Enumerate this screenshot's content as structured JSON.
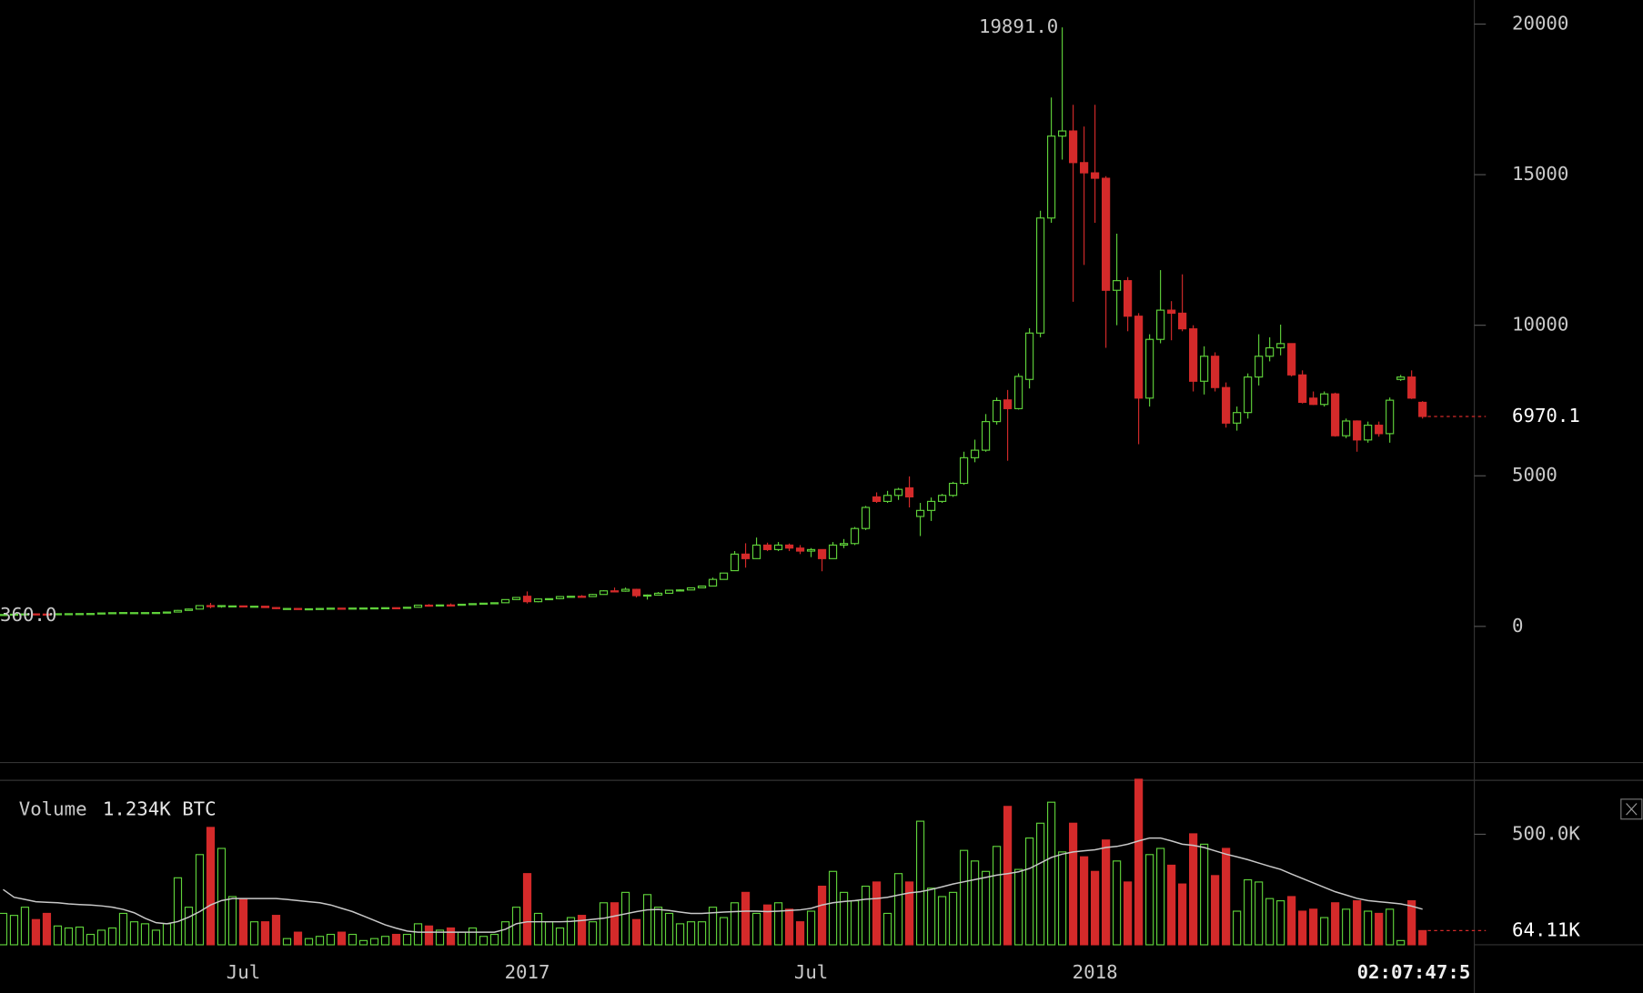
{
  "chart_data": [
    {
      "type": "candlestick",
      "categories": [
        null,
        null,
        null,
        null,
        null,
        null,
        null,
        null,
        null,
        null,
        null,
        null,
        null,
        null,
        null,
        null,
        null,
        null,
        null,
        null,
        null,
        null,
        null,
        null,
        null,
        null,
        null,
        null,
        null,
        null,
        null,
        null,
        null,
        null,
        null,
        null,
        null,
        null,
        null,
        null,
        null,
        null,
        null,
        null,
        null,
        null,
        null,
        null,
        null,
        null,
        null,
        null,
        null,
        null,
        null,
        null,
        null,
        null,
        null,
        null,
        null,
        null,
        null,
        null,
        null,
        null,
        null,
        null,
        null,
        null,
        null,
        null,
        null,
        null,
        null,
        null,
        null,
        null,
        null,
        null,
        null,
        null,
        null,
        null,
        null,
        null,
        null,
        null,
        null,
        null,
        null,
        null,
        null,
        null,
        null,
        null,
        null,
        null,
        null,
        null,
        null,
        null,
        null,
        null,
        null,
        null,
        null,
        null,
        null,
        null,
        null,
        null,
        null,
        null,
        null,
        null,
        null,
        null,
        null,
        null,
        null,
        null,
        null,
        null,
        null,
        null,
        null,
        null,
        null,
        null,
        null
      ],
      "open": [
        370,
        395,
        405,
        415,
        410,
        405,
        420,
        422,
        425,
        428,
        445,
        452,
        452,
        454,
        458,
        461,
        476,
        530,
        575,
        690,
        670,
        665,
        680,
        655,
        670,
        625,
        590,
        595,
        580,
        585,
        595,
        605,
        600,
        608,
        610,
        615,
        620,
        610,
        635,
        705,
        700,
        712,
        705,
        735,
        755,
        770,
        785,
        890,
        1000,
        820,
        910,
        920,
        990,
        1000,
        990,
        1060,
        1180,
        1170,
        1230,
        1020,
        1040,
        1100,
        1190,
        1210,
        1280,
        1340,
        1560,
        1850,
        2400,
        2250,
        2700,
        2550,
        2700,
        2600,
        2500,
        2550,
        2250,
        2700,
        2750,
        3250,
        4300,
        4150,
        4350,
        4600,
        3650,
        3850,
        4150,
        4350,
        4750,
        5600,
        5850,
        6800,
        7520,
        7230,
        8200,
        9740,
        13560,
        16280,
        16450,
        15400,
        15060,
        14880,
        11160,
        11480,
        10300,
        7580,
        9530,
        10500,
        10400,
        9880,
        8140,
        8970,
        7930,
        6750,
        7100,
        8280,
        8970,
        9250,
        9390,
        8350,
        7580,
        7370,
        7720,
        6330,
        6820,
        6190,
        6680,
        6400,
        8200,
        8280,
        7440
      ],
      "high": [
        400,
        410,
        440,
        420,
        418,
        425,
        428,
        430,
        430,
        452,
        462,
        468,
        460,
        462,
        462,
        480,
        545,
        590,
        700,
        780,
        705,
        690,
        690,
        675,
        675,
        640,
        600,
        600,
        590,
        600,
        615,
        610,
        612,
        612,
        618,
        625,
        625,
        640,
        720,
        740,
        715,
        760,
        745,
        760,
        775,
        790,
        900,
        975,
        1160,
        920,
        930,
        1000,
        1010,
        1040,
        1080,
        1200,
        1290,
        1290,
        1250,
        1060,
        1140,
        1210,
        1230,
        1290,
        1350,
        1620,
        1780,
        2500,
        2760,
        2950,
        2780,
        2800,
        2750,
        2700,
        2600,
        2560,
        2800,
        2900,
        3300,
        4000,
        4450,
        4500,
        4600,
        4980,
        4100,
        4280,
        4400,
        4800,
        5800,
        6200,
        7050,
        7600,
        7850,
        8400,
        9900,
        13800,
        17560,
        19891,
        17320,
        16600,
        17320,
        14950,
        13040,
        11600,
        10400,
        9700,
        11830,
        10800,
        11690,
        10000,
        9300,
        9100,
        8100,
        7300,
        8400,
        9700,
        9600,
        10020,
        9400,
        8500,
        7800,
        7800,
        7760,
        6900,
        6840,
        6800,
        6800,
        7600,
        8350,
        8500,
        7480
      ],
      "low": [
        365,
        385,
        400,
        395,
        400,
        400,
        412,
        415,
        418,
        425,
        440,
        442,
        445,
        440,
        448,
        455,
        470,
        525,
        570,
        600,
        620,
        640,
        650,
        645,
        620,
        575,
        570,
        570,
        565,
        575,
        590,
        590,
        595,
        600,
        605,
        608,
        605,
        608,
        630,
        690,
        695,
        690,
        700,
        730,
        750,
        765,
        780,
        880,
        760,
        800,
        880,
        900,
        970,
        980,
        985,
        1050,
        1130,
        1150,
        960,
        890,
        1030,
        1090,
        1160,
        1200,
        1270,
        1330,
        1550,
        1840,
        1950,
        2240,
        2500,
        2500,
        2500,
        2400,
        2300,
        1830,
        2240,
        2600,
        2700,
        3200,
        4100,
        4100,
        4200,
        3950,
        3000,
        3500,
        4100,
        4300,
        4700,
        5450,
        5800,
        6700,
        5500,
        7200,
        7900,
        9600,
        13400,
        15500,
        10780,
        12000,
        13400,
        9250,
        10000,
        9800,
        6050,
        7300,
        9400,
        9500,
        9800,
        7800,
        7700,
        7800,
        6600,
        6500,
        6900,
        8000,
        8800,
        9000,
        8300,
        7400,
        7350,
        7300,
        6300,
        6250,
        5800,
        6100,
        6300,
        6100,
        8150,
        7550,
        6900
      ],
      "close": [
        395,
        405,
        415,
        410,
        405,
        420,
        422,
        425,
        428,
        445,
        455,
        460,
        457,
        458,
        461,
        476,
        530,
        575,
        690,
        670,
        690,
        680,
        655,
        670,
        625,
        590,
        595,
        580,
        585,
        595,
        605,
        600,
        608,
        610,
        615,
        620,
        610,
        635,
        705,
        700,
        712,
        705,
        735,
        755,
        770,
        785,
        890,
        960,
        820,
        910,
        920,
        990,
        1000,
        990,
        1060,
        1180,
        1170,
        1230,
        1020,
        1040,
        1100,
        1200,
        1210,
        1280,
        1340,
        1560,
        1770,
        2400,
        2250,
        2700,
        2550,
        2700,
        2600,
        2500,
        2550,
        2250,
        2700,
        2750,
        3250,
        3950,
        4150,
        4350,
        4550,
        4300,
        3850,
        4150,
        4350,
        4750,
        5600,
        5850,
        6800,
        7500,
        7230,
        8300,
        9740,
        13560,
        16280,
        16450,
        15400,
        15060,
        14880,
        11160,
        11480,
        10300,
        7580,
        9530,
        10500,
        10400,
        9880,
        8140,
        8970,
        7930,
        6750,
        7100,
        8280,
        8970,
        9250,
        9390,
        8350,
        7440,
        7370,
        7720,
        6330,
        6820,
        6190,
        6680,
        6400,
        7510,
        8280,
        7580,
        6970.1
      ],
      "up_color": "#5fd13a",
      "down_color": "#d42a2a",
      "hollow_up": true,
      "ylim": [
        -4521,
        20798
      ],
      "yticks": [
        0,
        5000,
        10000,
        15000,
        20000
      ],
      "high_label": {
        "value": 19891,
        "label": "19891.0"
      },
      "low_label": {
        "value": 360,
        "label": "360.0"
      },
      "last_label": {
        "value": 6970.1,
        "label": "6970.1"
      }
    },
    {
      "type": "bar",
      "title": "Volume",
      "legend_value": "1.234K BTC",
      "categories": [
        null,
        null,
        null,
        null,
        null,
        null,
        null,
        null,
        null,
        null,
        null,
        null,
        null,
        null,
        null,
        null,
        null,
        null,
        null,
        null,
        null,
        null,
        null,
        null,
        null,
        null,
        null,
        null,
        null,
        null,
        null,
        null,
        null,
        null,
        null,
        null,
        null,
        null,
        null,
        null,
        null,
        null,
        null,
        null,
        null,
        null,
        null,
        null,
        null,
        null,
        null,
        null,
        null,
        null,
        null,
        null,
        null,
        null,
        null,
        null,
        null,
        null,
        null,
        null,
        null,
        null,
        null,
        null,
        null,
        null,
        null,
        null,
        null,
        null,
        null,
        null,
        null,
        null,
        null,
        null,
        null,
        null,
        null,
        null,
        null,
        null,
        null,
        null,
        null,
        null,
        null,
        null,
        null,
        null,
        null,
        null,
        null,
        null,
        null,
        null,
        null,
        null,
        null,
        null,
        null,
        null,
        null,
        null,
        null,
        null,
        null,
        null,
        null,
        null,
        null,
        null,
        null,
        null,
        null,
        null,
        null,
        null,
        null,
        null,
        null,
        null,
        null,
        null,
        null,
        null,
        null
      ],
      "values": [
        142,
        133,
        170,
        114,
        142,
        85,
        76,
        80,
        47,
        66,
        76,
        142,
        104,
        95,
        66,
        95,
        303,
        170,
        408,
        531,
        436,
        218,
        209,
        104,
        104,
        133,
        28,
        57,
        28,
        38,
        47,
        57,
        47,
        19,
        28,
        38,
        47,
        47,
        95,
        85,
        66,
        76,
        57,
        76,
        38,
        47,
        104,
        170,
        322,
        142,
        104,
        76,
        123,
        133,
        104,
        190,
        190,
        237,
        114,
        227,
        170,
        142,
        95,
        104,
        104,
        170,
        123,
        190,
        237,
        142,
        180,
        190,
        161,
        104,
        152,
        265,
        332,
        237,
        199,
        265,
        284,
        142,
        322,
        284,
        559,
        256,
        218,
        237,
        427,
        379,
        332,
        445,
        626,
        341,
        483,
        550,
        645,
        420,
        550,
        398,
        332,
        474,
        379,
        284,
        749,
        408,
        436,
        360,
        275,
        502,
        455,
        313,
        436,
        152,
        294,
        284,
        209,
        199,
        218,
        152,
        161,
        123,
        190,
        161,
        199,
        152,
        142,
        161,
        19,
        199,
        64.11
      ],
      "ma_values": [
        250,
        215,
        205,
        195,
        192,
        190,
        185,
        182,
        180,
        176,
        170,
        160,
        145,
        120,
        100,
        95,
        105,
        125,
        150,
        180,
        200,
        209,
        209,
        209,
        209,
        209,
        205,
        200,
        195,
        190,
        180,
        165,
        150,
        130,
        110,
        90,
        75,
        62,
        57,
        57,
        57,
        57,
        57,
        57,
        57,
        57,
        70,
        95,
        104,
        104,
        104,
        104,
        106,
        110,
        115,
        120,
        130,
        140,
        150,
        158,
        160,
        155,
        148,
        142,
        142,
        145,
        148,
        150,
        152,
        152,
        150,
        152,
        155,
        158,
        165,
        180,
        190,
        196,
        200,
        206,
        209,
        215,
        225,
        235,
        240,
        250,
        262,
        275,
        285,
        295,
        305,
        315,
        322,
        330,
        345,
        370,
        395,
        410,
        420,
        425,
        430,
        440,
        445,
        455,
        470,
        483,
        483,
        470,
        455,
        450,
        440,
        425,
        410,
        398,
        385,
        370,
        355,
        341,
        320,
        300,
        280,
        260,
        240,
        225,
        210,
        200,
        195,
        190,
        185,
        175,
        161
      ],
      "ma_color": "#c8c8c8",
      "ylim": [
        0,
        744
      ],
      "yticks": [
        {
          "value": 500,
          "label": "500.0K"
        }
      ],
      "last_label": {
        "value": 64.11,
        "label": "64.11K"
      },
      "xticks": [
        {
          "value": 22,
          "label": "Jul"
        },
        {
          "value": 48,
          "label": "2017"
        },
        {
          "value": 74,
          "label": "Jul"
        },
        {
          "value": 100,
          "label": "2018"
        }
      ]
    }
  ],
  "countdown": "02:07:47:5"
}
